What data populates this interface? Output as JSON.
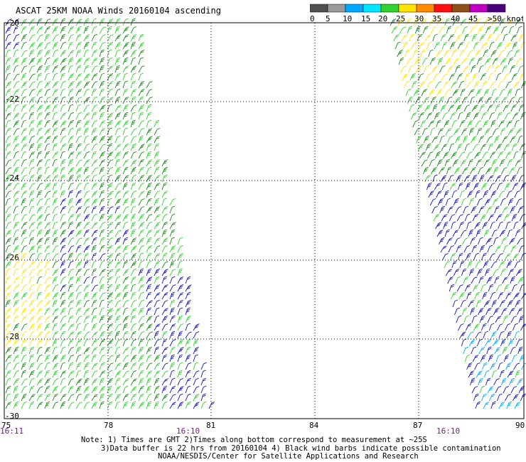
{
  "title": "ASCAT 25KM NOAA Winds 20160104 ascending",
  "scale": {
    "labels": [
      "0",
      "5",
      "10",
      "15",
      "20",
      "25",
      "30",
      "35",
      "40",
      "45",
      ">50 knots"
    ],
    "colors": [
      "#505050",
      "#9a9a9a",
      "#00a8ff",
      "#00e8ff",
      "#2fd22f",
      "#ffe400",
      "#ff8c00",
      "#ff1010",
      "#8c5018",
      "#c000c0",
      "#4b0078"
    ]
  },
  "map": {
    "lon_ticks": [
      "75",
      "78",
      "81",
      "84",
      "87",
      "90"
    ],
    "lat_ticks": [
      "-20",
      "-22",
      "-24",
      "-26",
      "-28",
      "-30"
    ],
    "times": [
      {
        "label": "16:11"
      },
      {
        "label": "16:10"
      },
      {
        "label": "16:10"
      }
    ]
  },
  "wind_colors": {
    "light_green": "#2fd22f",
    "dark_green": "#158a15",
    "blue": "#1010c8",
    "yellow": "#ffe400",
    "cyan": "#00a8ff"
  },
  "notes": [
    "Note: 1) Times are GMT 2)Times along bottom correspond to measurement at ~25S",
    "3)Data buffer is 22 hrs from 20160104 4) Black wind barbs indicate possible contamination",
    "NOAA/NESDIS/Center for Satellite Applications and Research"
  ]
}
